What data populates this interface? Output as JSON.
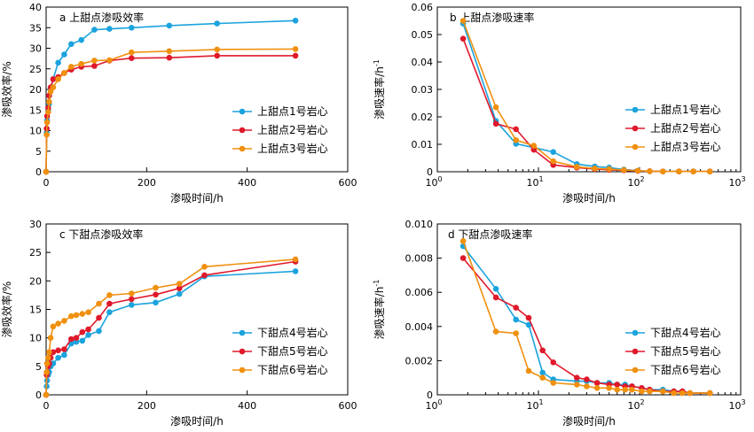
{
  "chart_data": [
    {
      "id": "a",
      "type": "line",
      "title": "a 上甜点渗吸效率",
      "xlabel": "渗吸时间/h",
      "ylabel": "渗吸效率/%",
      "xscale": "linear",
      "xlim": [
        0,
        600
      ],
      "ylim": [
        0,
        40
      ],
      "xticks": [
        0,
        200,
        400,
        600
      ],
      "yticks": [
        0,
        5,
        10,
        15,
        20,
        25,
        30,
        35,
        40
      ],
      "legend": "bottom-right",
      "grid": false,
      "series": [
        {
          "name": "上甜点1号岩心",
          "color": "#1ba3dd",
          "x": [
            0,
            1,
            2,
            4,
            6,
            9,
            14,
            24,
            36,
            50,
            70,
            96,
            126,
            170,
            245,
            340,
            496
          ],
          "y": [
            0,
            9.5,
            12.5,
            15,
            16.5,
            20,
            22.5,
            26.5,
            28.5,
            31,
            32,
            34.5,
            34.7,
            35,
            35.5,
            36,
            36.7
          ]
        },
        {
          "name": "上甜点2号岩心",
          "color": "#e0182b",
          "x": [
            0,
            1,
            2,
            4,
            6,
            9,
            14,
            24,
            36,
            50,
            70,
            96,
            126,
            170,
            245,
            340,
            496
          ],
          "y": [
            0,
            10.5,
            13.5,
            15.5,
            18.5,
            20.5,
            22.5,
            23,
            24,
            24.8,
            25.5,
            25.7,
            27,
            27.6,
            27.7,
            28.2,
            28.2
          ]
        },
        {
          "name": "上甜点3号岩心",
          "color": "#f0900f",
          "x": [
            0,
            1,
            2,
            4,
            6,
            9,
            14,
            24,
            36,
            50,
            70,
            96,
            126,
            170,
            245,
            340,
            496
          ],
          "y": [
            0,
            9,
            12,
            14.5,
            17,
            19.5,
            20.5,
            22.5,
            24,
            25.5,
            26.2,
            27,
            27.1,
            29,
            29.3,
            29.7,
            29.8
          ]
        }
      ]
    },
    {
      "id": "b",
      "type": "line",
      "title": "b 上甜点渗吸速率",
      "xlabel": "渗吸时间/h",
      "ylabel": "渗吸速率/h",
      "ylabel_sup": "-1",
      "xscale": "log",
      "xlim": [
        1,
        1000
      ],
      "ylim": [
        0,
        0.06
      ],
      "xtick_labels": [
        {
          "base": "10",
          "exp": "0"
        },
        {
          "base": "10",
          "exp": "1"
        },
        {
          "base": "10",
          "exp": "2"
        },
        {
          "base": "10",
          "exp": "3"
        }
      ],
      "yticks": [
        0,
        0.01,
        0.02,
        0.03,
        0.04,
        0.05,
        0.06
      ],
      "ytick_labels": [
        "0",
        "0.01",
        "0.02",
        "0.03",
        "0.04",
        "0.05",
        "0.06"
      ],
      "legend": "center-right",
      "grid": false,
      "series": [
        {
          "name": "上甜点1号岩心",
          "color": "#1ba3dd",
          "x": [
            1.8,
            3.8,
            6,
            9,
            14,
            24,
            36,
            50,
            70,
            96,
            126,
            170,
            245,
            340,
            496
          ],
          "y": [
            0.054,
            0.0185,
            0.0102,
            0.0088,
            0.0072,
            0.0028,
            0.0019,
            0.0015,
            0.0008,
            0.0004,
            0.0002,
            0.0001,
            0.0001,
            0.0001,
            0.0001
          ]
        },
        {
          "name": "上甜点2号岩心",
          "color": "#e0182b",
          "x": [
            1.8,
            3.8,
            6,
            9,
            14,
            24,
            36,
            50,
            70,
            96,
            126,
            170,
            245,
            340,
            496
          ],
          "y": [
            0.0485,
            0.0175,
            0.0155,
            0.008,
            0.0025,
            0.0015,
            0.001,
            0.0007,
            0.0005,
            0.0003,
            0.0002,
            0.0001,
            0.0001,
            0.0001,
            0.0001
          ]
        },
        {
          "name": "上甜点3号岩心",
          "color": "#f0900f",
          "x": [
            1.8,
            3.8,
            6,
            9,
            14,
            24,
            36,
            50,
            70,
            96,
            126,
            170,
            245,
            340,
            496
          ],
          "y": [
            0.055,
            0.0235,
            0.0115,
            0.0095,
            0.0038,
            0.0018,
            0.0012,
            0.001,
            0.0006,
            0.0004,
            0.0002,
            0.0001,
            0.0001,
            0.0001,
            0.0001
          ]
        }
      ]
    },
    {
      "id": "c",
      "type": "line",
      "title": "c 下甜点渗吸效率",
      "xlabel": "渗吸时间/h",
      "ylabel": "渗吸效率/%",
      "xscale": "linear",
      "xlim": [
        0,
        600
      ],
      "ylim": [
        0,
        30
      ],
      "xticks": [
        0,
        200,
        400,
        600
      ],
      "yticks": [
        0,
        5,
        10,
        15,
        20,
        25,
        30
      ],
      "legend": "bottom-right",
      "grid": false,
      "series": [
        {
          "name": "下甜点4号岩心",
          "color": "#1ba3dd",
          "x": [
            0,
            1,
            2,
            4,
            6,
            9,
            14,
            24,
            36,
            50,
            60,
            72,
            84,
            105,
            126,
            170,
            218,
            265,
            315,
            496
          ],
          "y": [
            0,
            1.5,
            2.5,
            3.5,
            4,
            5,
            5.5,
            6.5,
            7,
            9,
            9.3,
            9.5,
            10.5,
            11.2,
            14.5,
            15.8,
            16.2,
            17.7,
            20.8,
            21.7
          ]
        },
        {
          "name": "下甜点5号岩心",
          "color": "#e0182b",
          "x": [
            0,
            1,
            2,
            4,
            6,
            9,
            14,
            24,
            36,
            50,
            60,
            72,
            84,
            105,
            126,
            170,
            218,
            265,
            315,
            496
          ],
          "y": [
            0,
            3.5,
            4,
            5,
            5.5,
            6.5,
            7.5,
            7.8,
            8,
            9.8,
            10,
            11,
            11.5,
            13.5,
            16,
            16.8,
            17.6,
            18.7,
            21,
            23.4
          ]
        },
        {
          "name": "下甜点6号岩心",
          "color": "#f0900f",
          "x": [
            0,
            1,
            2,
            4,
            6,
            9,
            14,
            24,
            36,
            50,
            60,
            72,
            84,
            105,
            126,
            170,
            218,
            265,
            315,
            496
          ],
          "y": [
            0,
            4,
            5.5,
            6.5,
            7.5,
            10,
            12,
            12.5,
            13,
            13.8,
            14,
            14.2,
            14.5,
            16,
            17.5,
            17.8,
            18.8,
            19.5,
            22.5,
            23.8
          ]
        }
      ]
    },
    {
      "id": "d",
      "type": "line",
      "title": "d 下甜点渗吸速率",
      "xlabel": "渗吸时间/h",
      "ylabel": "渗吸速率/h",
      "ylabel_sup": "-1",
      "xscale": "log",
      "xlim": [
        1,
        1000
      ],
      "ylim": [
        0,
        0.01
      ],
      "xtick_labels": [
        {
          "base": "10",
          "exp": "0"
        },
        {
          "base": "10",
          "exp": "1"
        },
        {
          "base": "10",
          "exp": "2"
        },
        {
          "base": "10",
          "exp": "3"
        }
      ],
      "yticks": [
        0,
        0.002,
        0.004,
        0.006,
        0.008,
        0.01
      ],
      "ytick_labels": [
        "0",
        "0.002",
        "0.004",
        "0.006",
        "0.008",
        "0.010"
      ],
      "legend": "center-right",
      "grid": false,
      "series": [
        {
          "name": "下甜点4号岩心",
          "color": "#1ba3dd",
          "x": [
            1.8,
            3.8,
            6,
            8,
            11,
            14,
            24,
            30,
            38,
            50,
            60,
            72,
            84,
            105,
            126,
            170,
            218,
            265,
            315,
            496
          ],
          "y": [
            0.0087,
            0.0062,
            0.0044,
            0.0041,
            0.0013,
            0.0009,
            0.0008,
            0.0008,
            0.0007,
            0.0007,
            0.0006,
            0.0006,
            0.0005,
            0.0004,
            0.0003,
            0.0003,
            0.0002,
            0.0002,
            0.0001,
            0.0001
          ]
        },
        {
          "name": "下甜点5号岩心",
          "color": "#e0182b",
          "x": [
            1.8,
            3.8,
            6,
            8,
            11,
            14,
            24,
            30,
            38,
            50,
            60,
            72,
            84,
            105,
            126,
            170,
            218,
            265,
            315,
            496
          ],
          "y": [
            0.008,
            0.0057,
            0.0051,
            0.0045,
            0.0026,
            0.0019,
            0.001,
            0.0009,
            0.0007,
            0.0006,
            0.0006,
            0.0005,
            0.0005,
            0.0004,
            0.0003,
            0.0002,
            0.0002,
            0.0002,
            0.0001,
            0.0001
          ]
        },
        {
          "name": "下甜点6号岩心",
          "color": "#f0900f",
          "x": [
            1.8,
            3.8,
            6,
            8,
            11,
            14,
            24,
            30,
            38,
            50,
            60,
            72,
            84,
            105,
            126,
            170,
            218,
            265,
            315,
            496
          ],
          "y": [
            0.009,
            0.0037,
            0.0036,
            0.0014,
            0.001,
            0.0007,
            0.0006,
            0.0005,
            0.0004,
            0.0004,
            0.0003,
            0.0003,
            0.0003,
            0.0002,
            0.0002,
            0.0002,
            0.0001,
            0.0001,
            0.0001,
            0.0001
          ]
        }
      ]
    }
  ]
}
